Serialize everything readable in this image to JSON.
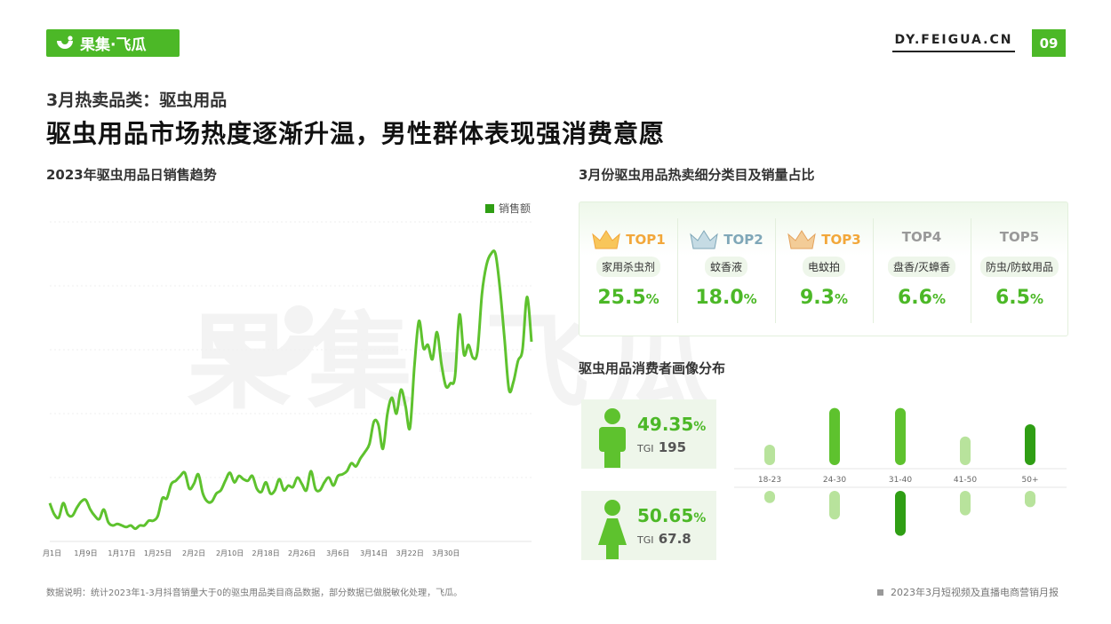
{
  "header": {
    "logo_text": "果集·飞瓜",
    "site": "DY.FEIGUA.CN",
    "page_number": "09"
  },
  "kicker": "3月热卖品类：驱虫用品",
  "headline": "驱虫用品市场热度逐渐升温，男性群体表现强消费意愿",
  "watermark": "果集·飞瓜",
  "chart_data": [
    {
      "type": "line",
      "title": "2023年驱虫用品日销售趋势",
      "legend": [
        "销售额"
      ],
      "legend_position": "top-right",
      "grid": true,
      "y_axis_labels_visible": false,
      "color": "#5ec22e",
      "legend_color": "#2f9e14",
      "x_ticks": [
        "1月1日",
        "1月9日",
        "1月17日",
        "1月25日",
        "2月2日",
        "2月10日",
        "2月18日",
        "2月26日",
        "3月6日",
        "3月14日",
        "3月22日",
        "3月30日"
      ],
      "series": [
        {
          "name": "销售额",
          "values": [
            24,
            17,
            15,
            24,
            17,
            16,
            21,
            25,
            26,
            20,
            16,
            14,
            20,
            12,
            10,
            11,
            10,
            9,
            10,
            8,
            10,
            10,
            13,
            13,
            16,
            27,
            27,
            36,
            38,
            41,
            43,
            33,
            36,
            42,
            30,
            25,
            25,
            30,
            32,
            38,
            43,
            37,
            41,
            39,
            38,
            41,
            33,
            31,
            37,
            30,
            32,
            39,
            32,
            35,
            34,
            40,
            36,
            32,
            44,
            33,
            32,
            37,
            40,
            35,
            41,
            42,
            44,
            49,
            47,
            52,
            56,
            61,
            75,
            73,
            58,
            80,
            90,
            80,
            95,
            85,
            71,
            110,
            138,
            121,
            123,
            114,
            131,
            111,
            97,
            99,
            103,
            142,
            117,
            123,
            115,
            119,
            155,
            173,
            180,
            180,
            158,
            127,
            95,
            100,
            113,
            120,
            153,
            125
          ]
        }
      ]
    },
    {
      "type": "bar",
      "title": "驱虫用品消费者画像分布",
      "categories": [
        "18-23",
        "24-30",
        "31-40",
        "41-50",
        "50+"
      ],
      "series": [
        {
          "name": "男",
          "values": [
            5,
            14,
            14,
            7,
            10
          ]
        },
        {
          "name": "女",
          "values": [
            3,
            7,
            11,
            6,
            4
          ]
        }
      ],
      "colors": [
        "#b8e39c",
        "#5ec22e",
        "#2f9e14"
      ]
    }
  ],
  "top_title": "3月份驱虫用品热卖细分类目及销量占比",
  "top_items": [
    {
      "rank": "TOP1",
      "category": "家用杀虫剂",
      "percent": "25.5",
      "unit": "%",
      "rank_color": "#f2a73a",
      "crown": "gold"
    },
    {
      "rank": "TOP2",
      "category": "蚊香液",
      "percent": "18.0",
      "unit": "%",
      "rank_color": "#7fa7b8",
      "crown": "silver"
    },
    {
      "rank": "TOP3",
      "category": "电蚊拍",
      "percent": "9.3",
      "unit": "%",
      "rank_color": "#f2a73a",
      "crown": "bronze"
    },
    {
      "rank": "TOP4",
      "category": "盘香/灭蟑香",
      "percent": "6.6",
      "unit": "%",
      "rank_color": "#999999"
    },
    {
      "rank": "TOP5",
      "category": "防虫/防蚊用品",
      "percent": "6.5",
      "unit": "%",
      "rank_color": "#999999"
    }
  ],
  "consumer": {
    "male": {
      "percent": "49.35",
      "unit": "%",
      "tgi_label": "TGI",
      "tgi": "195",
      "icon": "male-icon"
    },
    "female": {
      "percent": "50.65",
      "unit": "%",
      "tgi_label": "TGI",
      "tgi": "67.8",
      "icon": "female-icon"
    }
  },
  "footer": {
    "note": "数据说明：统计2023年1-3月抖音销量大于0的驱虫用品类目商品数据，部分数据已做脱敏化处理，飞瓜。",
    "report": "2023年3月短视频及直播电商营销月报"
  }
}
